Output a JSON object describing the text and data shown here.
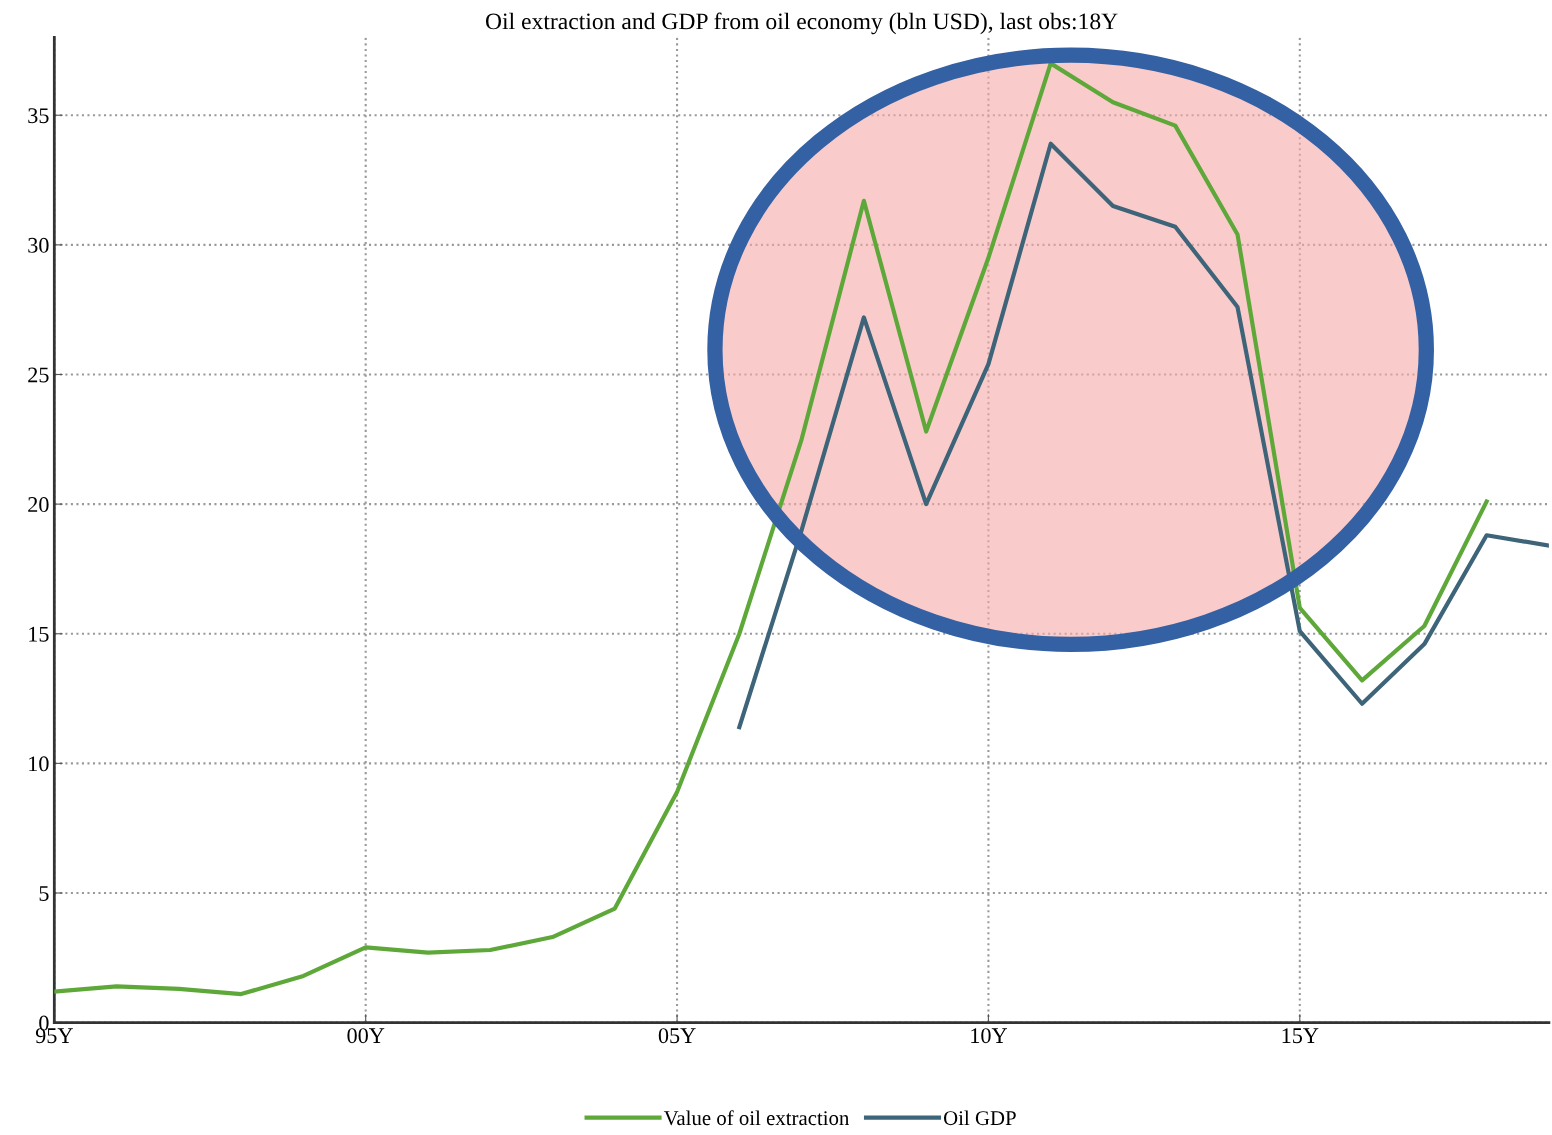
{
  "chart_data": {
    "type": "line",
    "title": "Oil extraction and GDP from oil economy (bln USD), last obs:18Y",
    "categories": [
      "95Y",
      null,
      null,
      null,
      null,
      "00Y",
      null,
      null,
      null,
      null,
      "05Y",
      null,
      null,
      null,
      null,
      "10Y",
      null,
      null,
      null,
      null,
      "15Y",
      null,
      null,
      null,
      null
    ],
    "series": [
      {
        "name": "Value of oil extraction",
        "color": "#5ea83a",
        "values": [
          1.2,
          1.4,
          1.3,
          1.1,
          1.8,
          2.9,
          2.7,
          2.8,
          3.3,
          4.4,
          8.9,
          15.0,
          22.5,
          31.7,
          22.8,
          29.5,
          37.0,
          35.5,
          34.6,
          30.4,
          16.0,
          13.2,
          15.3,
          20.1,
          null
        ]
      },
      {
        "name": "Oil GDP",
        "color": "#3d6478",
        "values": [
          null,
          null,
          null,
          null,
          null,
          null,
          null,
          null,
          null,
          null,
          null,
          11.4,
          19.0,
          27.2,
          20.0,
          25.4,
          33.9,
          31.5,
          30.7,
          27.6,
          15.1,
          12.3,
          14.6,
          18.8,
          18.4
        ]
      }
    ],
    "ylim": [
      0,
      38
    ],
    "yticks": [
      0,
      5,
      10,
      15,
      20,
      25,
      30,
      35
    ],
    "grid": true,
    "legend": "bottom",
    "line_style": "solid",
    "marker": "none"
  }
}
